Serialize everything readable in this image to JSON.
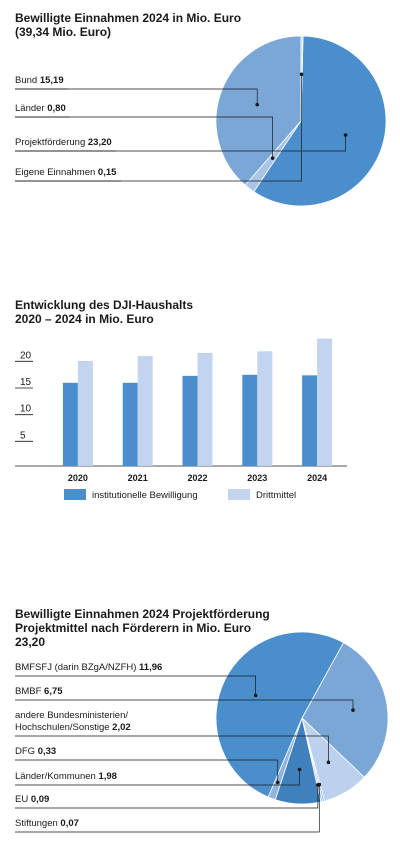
{
  "chart_data": [
    {
      "type": "pie",
      "title": [
        "Bewilligte Einnahmen 2024 in Mio. Euro",
        "(39,34 Mio. Euro)"
      ],
      "slices": [
        {
          "label": "Bund",
          "value": 15.19,
          "value_text": "15,19",
          "color": "#7ba7d7"
        },
        {
          "label": "Länder",
          "value": 0.8,
          "value_text": "0,80",
          "color": "#a9c6e8"
        },
        {
          "label": "Projektförderung",
          "value": 23.2,
          "value_text": "23,20",
          "color": "#4a8fcc"
        },
        {
          "label": "Eigene Einnahmen",
          "value": 0.15,
          "value_text": "0,15",
          "color": "#c5d8ef"
        }
      ]
    },
    {
      "type": "bar",
      "title": [
        "Entwicklung des DJI-Haushalts",
        "2020 – 2024 in Mio. Euro"
      ],
      "categories": [
        "2020",
        "2021",
        "2022",
        "2023",
        "2024"
      ],
      "yticks": [
        5,
        10,
        15,
        20
      ],
      "ylim": [
        0,
        24
      ],
      "series": [
        {
          "name": "institutionelle Bewilligung",
          "color": "#4a8fcc",
          "values": [
            15.6,
            15.6,
            16.9,
            17.1,
            17.0
          ]
        },
        {
          "name": "Drittmittel",
          "color": "#c2d4ee",
          "values": [
            19.7,
            20.6,
            21.2,
            21.5,
            23.9
          ]
        }
      ],
      "legend": "bottom"
    },
    {
      "type": "pie",
      "title": [
        "Bewilligte Einnahmen 2024 Projektförderung",
        "Projektmittel nach Förderern in Mio. Euro",
        "23,20"
      ],
      "slices": [
        {
          "label": "BMFSFJ (darin BZgA/NZFH)",
          "value": 11.96,
          "value_text": "11,96",
          "color": "#4a8fcc"
        },
        {
          "label": "BMBF",
          "value": 6.75,
          "value_text": "6,75",
          "color": "#7ba7d7"
        },
        {
          "label": "andere Bundesministerien/ Hochschulen/Sonstige",
          "label_lines": [
            "andere Bundesministerien/",
            "Hochschulen/Sonstige"
          ],
          "value": 2.02,
          "value_text": "2,02",
          "color": "#bcd1ee"
        },
        {
          "label": "DFG",
          "value": 0.33,
          "value_text": "0,33",
          "color": "#8fb4de"
        },
        {
          "label": "Länder/Kommunen",
          "value": 1.98,
          "value_text": "1,98",
          "color": "#3f80bd"
        },
        {
          "label": "EU",
          "value": 0.09,
          "value_text": "0,09",
          "color": "#a9c6e8"
        },
        {
          "label": "Stiftungen",
          "value": 0.07,
          "value_text": "0,07",
          "color": "#6f9fd3"
        }
      ]
    }
  ]
}
